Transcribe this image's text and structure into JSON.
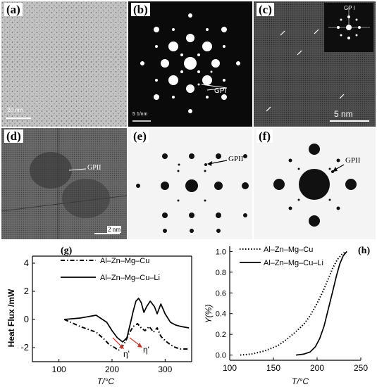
{
  "panels": {
    "a": {
      "label": "(a)",
      "scale_text": "20 nm"
    },
    "b": {
      "label": "(b)",
      "scale_text": "5 1/nm",
      "annotation": "GPI"
    },
    "c": {
      "label": "(c)",
      "scale_text": "5 nm",
      "inset_annotation": "GP I"
    },
    "d": {
      "label": "(d)",
      "scale_text": "2 nm",
      "annotation": "GPII"
    },
    "e": {
      "label": "(e)",
      "annotation": "GPII"
    },
    "f": {
      "label": "(f)",
      "annotation": "GPII"
    }
  },
  "chart_data": [
    {
      "panel_label": "(g)",
      "type": "line",
      "ylabel": "Heat Flux /mW",
      "xlabel": "T/°C",
      "xlim": [
        50,
        350
      ],
      "ylim": [
        -3,
        4.5
      ],
      "xticks": [
        "100",
        "200",
        "300"
      ],
      "yticks": [
        "4",
        "2",
        "0",
        "-2"
      ],
      "annotations": [
        "η'",
        "η'"
      ],
      "series": [
        {
          "name": "Al–Zn–Mg–Cu",
          "style": "dash-dot",
          "x": [
            110,
            140,
            170,
            185,
            195,
            205,
            212,
            218,
            225,
            232,
            240,
            248,
            255,
            262,
            270,
            278,
            285,
            292,
            300,
            310,
            320,
            330,
            345
          ],
          "y": [
            0,
            -0.5,
            -0.9,
            -1.4,
            -1.8,
            -2.0,
            -2.2,
            -2.0,
            -1.6,
            -1.0,
            -0.5,
            -0.3,
            -0.6,
            -0.8,
            -0.5,
            -0.9,
            -0.6,
            -1.2,
            -1.5,
            -1.8,
            -2.0,
            -2.1,
            -2.1
          ]
        },
        {
          "name": "Al–Zn–Mg–Cu–Li",
          "style": "solid",
          "x": [
            110,
            140,
            170,
            190,
            200,
            210,
            220,
            228,
            235,
            240,
            245,
            250,
            255,
            260,
            265,
            272,
            280,
            285,
            292,
            300,
            310,
            320,
            330,
            345
          ],
          "y": [
            0,
            0.1,
            0.3,
            -0.2,
            -0.8,
            -1.3,
            -1.6,
            -1.3,
            -0.2,
            0.6,
            1.3,
            1.5,
            1.2,
            0.5,
            0.9,
            1.3,
            0.9,
            0.4,
            1.1,
            0.4,
            -0.2,
            -0.4,
            -0.5,
            -0.6
          ]
        }
      ]
    },
    {
      "panel_label": "(h)",
      "type": "line",
      "ylabel": "Y(%)",
      "xlabel": "T/°C",
      "xlim": [
        100,
        250
      ],
      "ylim": [
        -0.05,
        1.05
      ],
      "xticks": [
        "100",
        "150",
        "200",
        "250"
      ],
      "yticks": [
        "0.0",
        "0.2",
        "0.4",
        "0.6",
        "0.8",
        "1.0"
      ],
      "series": [
        {
          "name": "Al–Zn–Mg–Cu",
          "style": "dotted",
          "x": [
            112,
            125,
            140,
            155,
            165,
            175,
            185,
            192,
            200,
            207,
            213,
            218,
            223,
            228,
            233
          ],
          "y": [
            0.0,
            0.01,
            0.04,
            0.09,
            0.15,
            0.22,
            0.3,
            0.38,
            0.5,
            0.62,
            0.74,
            0.84,
            0.92,
            0.97,
            1.0
          ]
        },
        {
          "name": "Al–Zn–Mg–Cu–Li",
          "style": "solid",
          "x": [
            176,
            185,
            192,
            198,
            203,
            208,
            213,
            218,
            222,
            226,
            230,
            234
          ],
          "y": [
            0.0,
            0.01,
            0.03,
            0.08,
            0.16,
            0.28,
            0.45,
            0.62,
            0.76,
            0.88,
            0.96,
            1.0
          ]
        }
      ]
    }
  ]
}
